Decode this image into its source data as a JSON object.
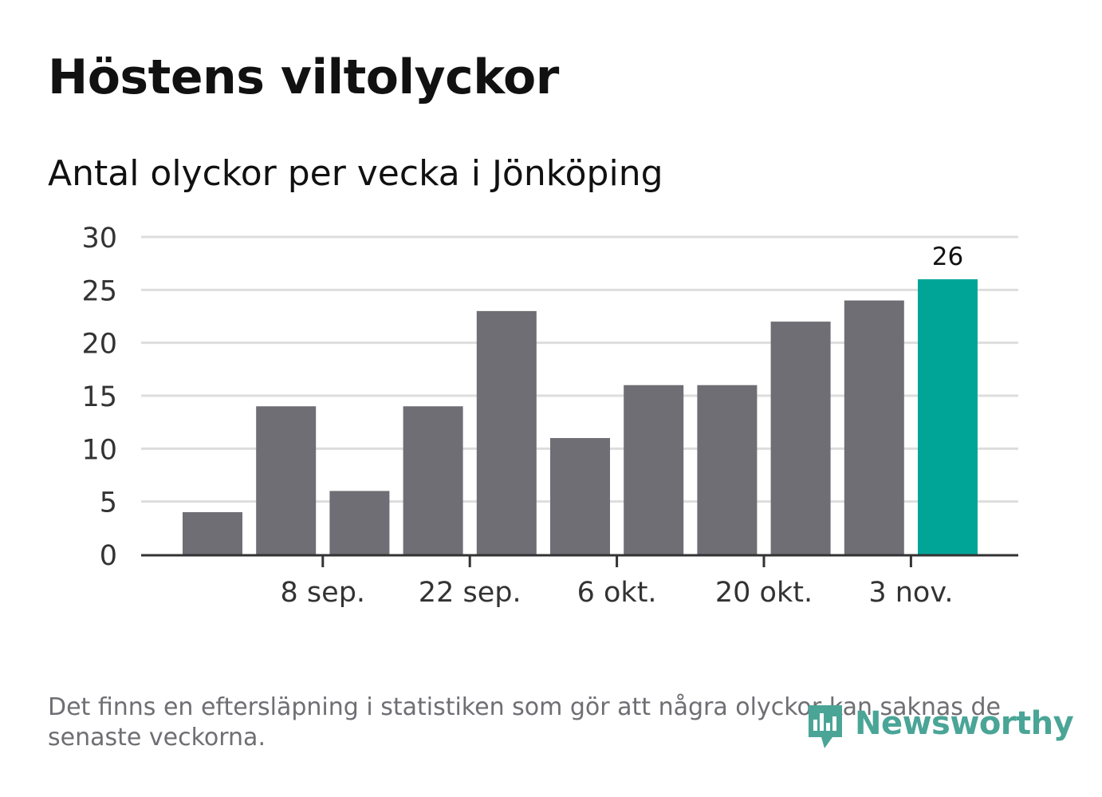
{
  "header": {
    "title": "Höstens viltolyckor",
    "subtitle": "Antal olyckor per vecka i Jönköping"
  },
  "chart_data": {
    "type": "bar",
    "title": "Höstens viltolyckor",
    "subtitle": "Antal olyckor per vecka i Jönköping",
    "xlabel": "",
    "ylabel": "",
    "ylim": [
      0,
      30
    ],
    "yticks": [
      0,
      5,
      10,
      15,
      20,
      25,
      30
    ],
    "grid": true,
    "values": [
      4,
      14,
      6,
      14,
      23,
      11,
      16,
      16,
      22,
      24,
      26
    ],
    "x_tick_labels": [
      {
        "bar_index": 1.5,
        "label": "8 sep."
      },
      {
        "bar_index": 3.5,
        "label": "22 sep."
      },
      {
        "bar_index": 5.5,
        "label": "6 okt."
      },
      {
        "bar_index": 7.5,
        "label": "20 okt."
      },
      {
        "bar_index": 9.5,
        "label": "3 nov."
      }
    ],
    "highlight_index": 10,
    "highlight_label": "26",
    "colors": {
      "bar": "#6f6e74",
      "highlight": "#00a598",
      "grid": "#dddddd",
      "axis": "#333333"
    }
  },
  "footer": {
    "note": "Det finns en eftersläpning i statistiken som gör att några olyckor kan saknas de senaste veckorna.",
    "brand": "Newsworthy",
    "brand_color": "#4aa597"
  }
}
